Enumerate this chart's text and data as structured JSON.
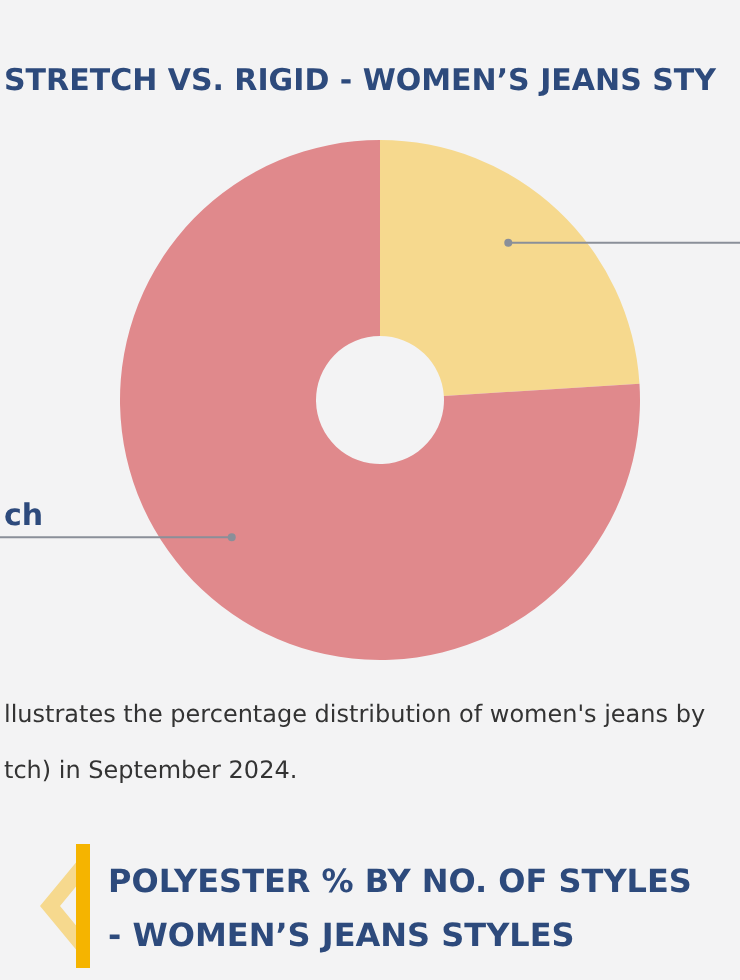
{
  "chart_data": {
    "type": "donut",
    "title": "STRETCH VS. RIGID - WOMEN’S JEANS STY",
    "categories": [
      null,
      "ch"
    ],
    "values": [
      24,
      76
    ],
    "colors": [
      "#f6d98e",
      "#e0898c"
    ],
    "annotations": [
      "llustrates the percentage distribution of women's jeans by",
      "tch) in September 2024.",
      "POLYESTER % BY NO. OF STYLES - WOMEN’S JEANS STYLES"
    ]
  }
}
